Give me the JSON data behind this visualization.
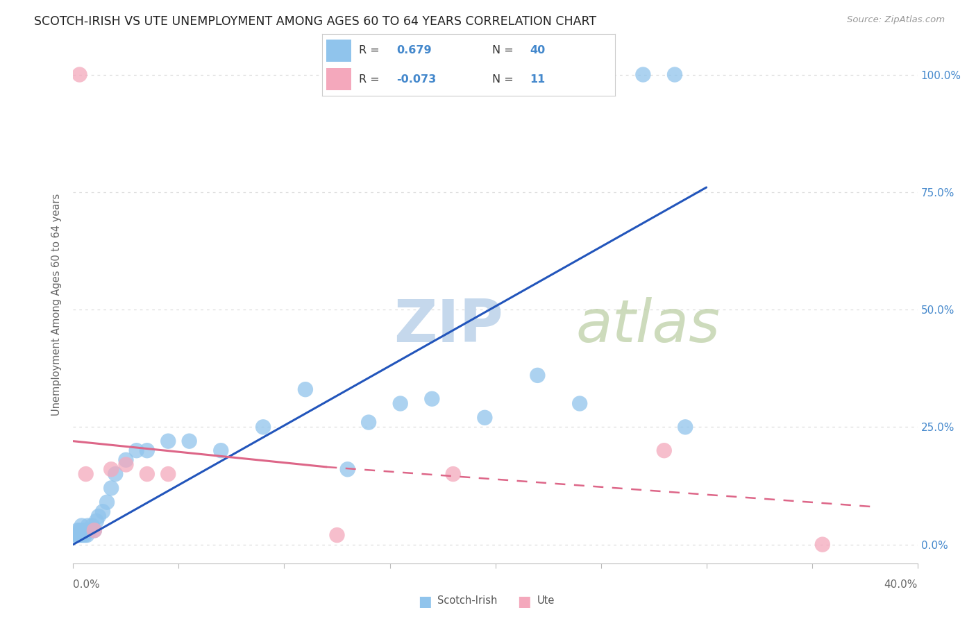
{
  "title": "SCOTCH-IRISH VS UTE UNEMPLOYMENT AMONG AGES 60 TO 64 YEARS CORRELATION CHART",
  "source": "Source: ZipAtlas.com",
  "ylabel": "Unemployment Among Ages 60 to 64 years",
  "ytick_vals": [
    0,
    25,
    50,
    75,
    100
  ],
  "ytick_labels": [
    "0.0%",
    "25.0%",
    "50.0%",
    "75.0%",
    "100.0%"
  ],
  "xmin": 0.0,
  "xmax": 40.0,
  "ymin": -4.0,
  "ymax": 106.0,
  "scotch_irish_color": "#90C4EC",
  "ute_color": "#F4A8BC",
  "scotch_irish_R": 0.679,
  "scotch_irish_N": 40,
  "ute_R": -0.073,
  "ute_N": 11,
  "blue_line_color": "#2255BB",
  "pink_line_color": "#DD6688",
  "right_axis_color": "#4488CC",
  "grid_color": "#DDDDDD",
  "title_color": "#222222",
  "source_color": "#999999",
  "watermark_color": "#C5D8EC",
  "scotch_irish_x": [
    0.1,
    0.15,
    0.2,
    0.25,
    0.3,
    0.35,
    0.4,
    0.45,
    0.5,
    0.55,
    0.6,
    0.65,
    0.7,
    0.8,
    0.9,
    1.0,
    1.1,
    1.2,
    1.4,
    1.6,
    1.8,
    2.0,
    2.5,
    3.0,
    3.5,
    4.5,
    5.5,
    7.0,
    9.0,
    11.0,
    13.0,
    14.0,
    15.5,
    17.0,
    19.5,
    22.0,
    24.0,
    27.0,
    28.5,
    29.0
  ],
  "scotch_irish_y": [
    2,
    2,
    3,
    2,
    3,
    2,
    4,
    2,
    3,
    2,
    3,
    2,
    4,
    3,
    4,
    3,
    5,
    6,
    7,
    9,
    12,
    15,
    18,
    20,
    20,
    22,
    22,
    20,
    25,
    33,
    16,
    26,
    30,
    31,
    27,
    36,
    30,
    100,
    100,
    25
  ],
  "ute_x": [
    0.3,
    0.6,
    1.0,
    1.8,
    2.5,
    3.5,
    4.5,
    12.5,
    18.0,
    28.0,
    35.5
  ],
  "ute_y": [
    100,
    15,
    3,
    16,
    17,
    15,
    15,
    2,
    15,
    20,
    0
  ],
  "scotch_line_x0": 0.0,
  "scotch_line_y0": 0.0,
  "scotch_line_x1": 30.0,
  "scotch_line_y1": 76.0,
  "ute_solid_x0": 0.0,
  "ute_solid_y0": 22.0,
  "ute_solid_x1": 12.0,
  "ute_solid_y1": 16.5,
  "ute_dashed_x0": 12.0,
  "ute_dashed_y0": 16.5,
  "ute_dashed_x1": 38.0,
  "ute_dashed_y1": 8.0,
  "legend_label_scotch": "Scotch-Irish",
  "legend_label_ute": "Ute"
}
